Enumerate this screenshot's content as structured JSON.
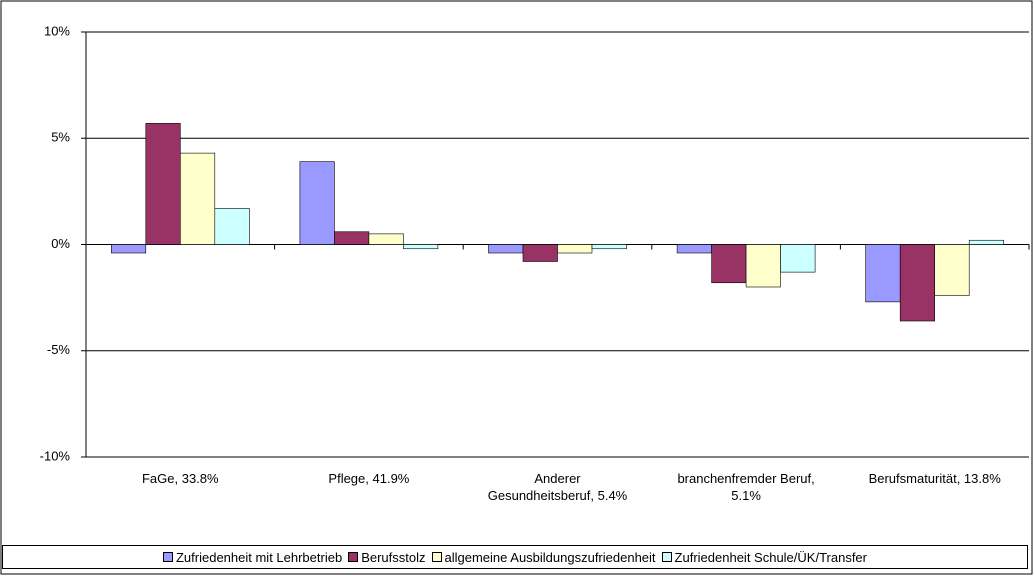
{
  "chart_data": {
    "type": "bar",
    "categories": [
      "FaGe, 33.8%",
      "Pflege, 41.9%",
      "Anderer Gesundheitsberuf, 5.4%",
      "branchenfremder Beruf, 5.1%",
      "Berufsmaturität, 13.8%"
    ],
    "series": [
      {
        "name": "Zufriedenheit mit Lehrbetrieb",
        "color": "#9999ff",
        "values": [
          -0.4,
          3.9,
          -0.4,
          -0.4,
          -2.7
        ]
      },
      {
        "name": "Berufsstolz",
        "color": "#993366",
        "values": [
          5.7,
          0.6,
          -0.8,
          -1.8,
          -3.6
        ]
      },
      {
        "name": "allgemeine Ausbildungszufriedenheit",
        "color": "#ffffcc",
        "values": [
          4.3,
          0.5,
          -0.4,
          -2.0,
          -2.4
        ]
      },
      {
        "name": "Zufriedenheit Schule/ÜK/Transfer",
        "color": "#ccffff",
        "values": [
          1.7,
          -0.2,
          -0.2,
          -1.3,
          0.2
        ]
      }
    ],
    "ylim": [
      -10,
      10
    ],
    "yticks": [
      {
        "value": -10,
        "label": "-10%"
      },
      {
        "value": -5,
        "label": "-5%"
      },
      {
        "value": 0,
        "label": "0%"
      },
      {
        "value": 5,
        "label": "5%"
      },
      {
        "value": 10,
        "label": "10%"
      }
    ],
    "grid": true,
    "legend": "bottom"
  }
}
